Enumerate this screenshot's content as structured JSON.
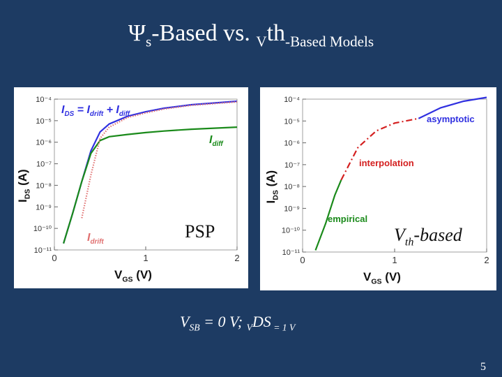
{
  "slide": {
    "title": [
      "Ψ",
      "s",
      "-Based vs. ",
      "V",
      "th",
      "-Based Models"
    ],
    "condition": [
      "V",
      "SB",
      " = 0 V; ",
      "V",
      "DS",
      " = 1 V"
    ],
    "page_number": "5"
  },
  "chart_data": [
    {
      "type": "line",
      "log_y": true,
      "annotation": [
        "PSP"
      ],
      "x_label": [
        "V",
        "GS",
        "   (V)"
      ],
      "y_label": [
        "I",
        "DS",
        "  (A)"
      ],
      "xlim": [
        0,
        2
      ],
      "xticks": [
        0,
        1,
        2
      ],
      "ylim": [
        1e-11,
        0.0001
      ],
      "yticks": [
        {
          "value": 1e-11,
          "label": "10⁻¹¹"
        },
        {
          "value": 1e-10,
          "label": "10⁻¹⁰"
        },
        {
          "value": 1e-09,
          "label": "10⁻⁹"
        },
        {
          "value": 1e-08,
          "label": "10⁻⁸"
        },
        {
          "value": 1e-07,
          "label": "10⁻⁷"
        },
        {
          "value": 1e-06,
          "label": "10⁻⁶"
        },
        {
          "value": 1e-05,
          "label": "10⁻⁵"
        },
        {
          "value": 0.0001,
          "label": "10⁻⁴"
        }
      ],
      "x": [
        0.1,
        0.2,
        0.3,
        0.4,
        0.5,
        0.6,
        0.8,
        1.0,
        1.2,
        1.5,
        2.0
      ],
      "series": [
        {
          "name": [
            "I",
            "DS",
            " = I",
            "drift",
            " + I",
            "diff"
          ],
          "color": "#3030e0",
          "dash": "solid",
          "values": [
            2e-11,
            5e-10,
            1.5e-08,
            4e-07,
            3e-06,
            7e-06,
            1.6e-05,
            2.6e-05,
            3.8e-05,
            5.5e-05,
            8e-05
          ]
        },
        {
          "name": [
            "I",
            "diff"
          ],
          "color": "#1a8a1a",
          "dash": "solid",
          "values": [
            2e-11,
            5e-10,
            1.5e-08,
            3e-07,
            1.2e-06,
            1.8e-06,
            2.3e-06,
            2.8e-06,
            3.3e-06,
            4e-06,
            5e-06
          ]
        },
        {
          "name": [
            "I",
            "drift"
          ],
          "color": "#e07070",
          "dash": "dotted",
          "values": [
            null,
            null,
            3e-10,
            3e-08,
            1.5e-06,
            5e-06,
            1.4e-05,
            2.3e-05,
            3.5e-05,
            5.2e-05,
            7.5e-05
          ]
        }
      ]
    },
    {
      "type": "line",
      "log_y": true,
      "annotation": [
        "V",
        "th",
        "-based"
      ],
      "x_label": [
        "V",
        "GS",
        "   (V)"
      ],
      "y_label": [
        "I",
        "DS",
        "  (A)"
      ],
      "xlim": [
        0,
        2
      ],
      "xticks": [
        0,
        1,
        2
      ],
      "ylim": [
        1e-11,
        0.0001
      ],
      "yticks": [
        {
          "value": 1e-11,
          "label": "10⁻¹¹"
        },
        {
          "value": 1e-10,
          "label": "10⁻¹⁰"
        },
        {
          "value": 1e-09,
          "label": "10⁻⁹"
        },
        {
          "value": 1e-08,
          "label": "10⁻⁸"
        },
        {
          "value": 1e-07,
          "label": "10⁻⁷"
        },
        {
          "value": 1e-06,
          "label": "10⁻⁶"
        },
        {
          "value": 1e-05,
          "label": "10⁻⁵"
        },
        {
          "value": 0.0001,
          "label": "10⁻⁴"
        }
      ],
      "series": [
        {
          "name": [
            "empirical"
          ],
          "color": "#1a8a1a",
          "dash": "solid",
          "x": [
            0.14,
            0.25,
            0.35,
            0.42
          ],
          "values": [
            1.2e-11,
            2e-10,
            4e-09,
            2e-08
          ]
        },
        {
          "name": [
            "interpolation"
          ],
          "color": "#d42020",
          "dash": "dash-dot",
          "x": [
            0.42,
            0.6,
            0.8,
            1.0,
            1.26
          ],
          "values": [
            2e-08,
            6e-07,
            3.5e-06,
            8e-06,
            1.3e-05
          ]
        },
        {
          "name": [
            "asymptotic"
          ],
          "color": "#3030e0",
          "dash": "solid",
          "x": [
            1.26,
            1.5,
            1.75,
            2.0
          ],
          "values": [
            1.3e-05,
            4e-05,
            8e-05,
            0.00012
          ]
        }
      ]
    }
  ]
}
